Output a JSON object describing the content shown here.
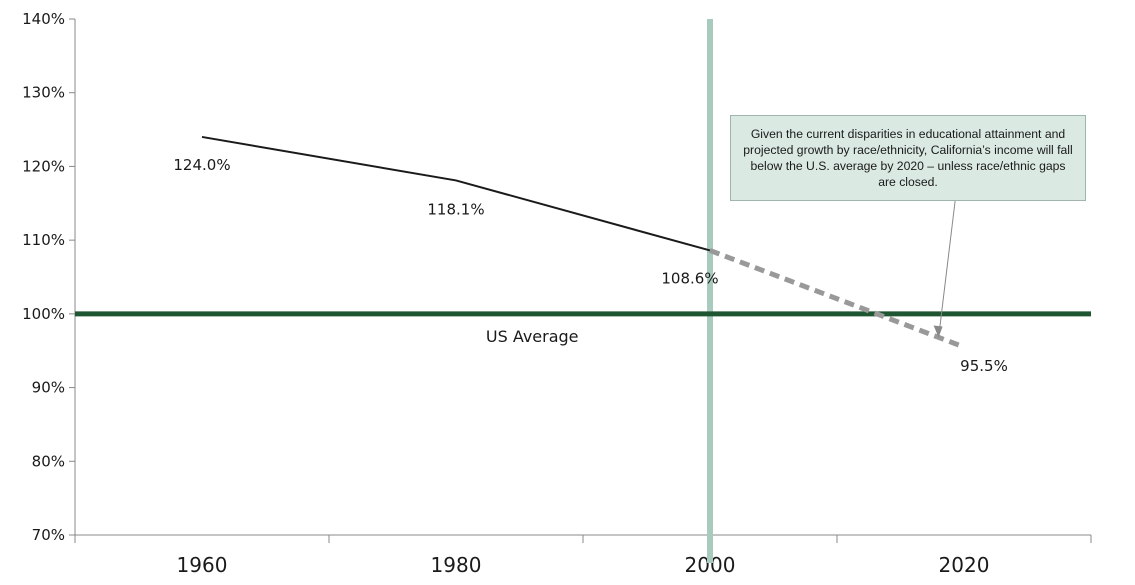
{
  "chart_data": {
    "type": "line",
    "x_categories": [
      "1960",
      "1980",
      "2000",
      "2020"
    ],
    "y_ticks": [
      "70%",
      "80%",
      "90%",
      "100%",
      "110%",
      "120%",
      "130%",
      "140%"
    ],
    "ylim": [
      70,
      140
    ],
    "series": [
      {
        "style": "solid",
        "color": "#1a1a1a",
        "points": [
          {
            "x": 1960,
            "y": 124.0,
            "label": "124.0%"
          },
          {
            "x": 1980,
            "y": 118.1,
            "label": "118.1%"
          },
          {
            "x": 2000,
            "y": 108.6,
            "label": "108.6%"
          }
        ]
      },
      {
        "style": "dashed",
        "color": "#999999",
        "points": [
          {
            "x": 2000,
            "y": 108.6
          },
          {
            "x": 2020,
            "y": 95.5,
            "label": "95.5%"
          }
        ]
      }
    ],
    "reference_line": {
      "y": 100,
      "label": "US Average",
      "color": "#1e5631"
    },
    "vertical_marker": {
      "x": 2000,
      "color": "#a9cbbd"
    },
    "annotation": "Given the current disparities in educational attainment and projected growth by race/ethnicity, California’s income will fall below the U.S. average by 2020 – unless race/ethnic gaps are closed.",
    "grid": false
  }
}
